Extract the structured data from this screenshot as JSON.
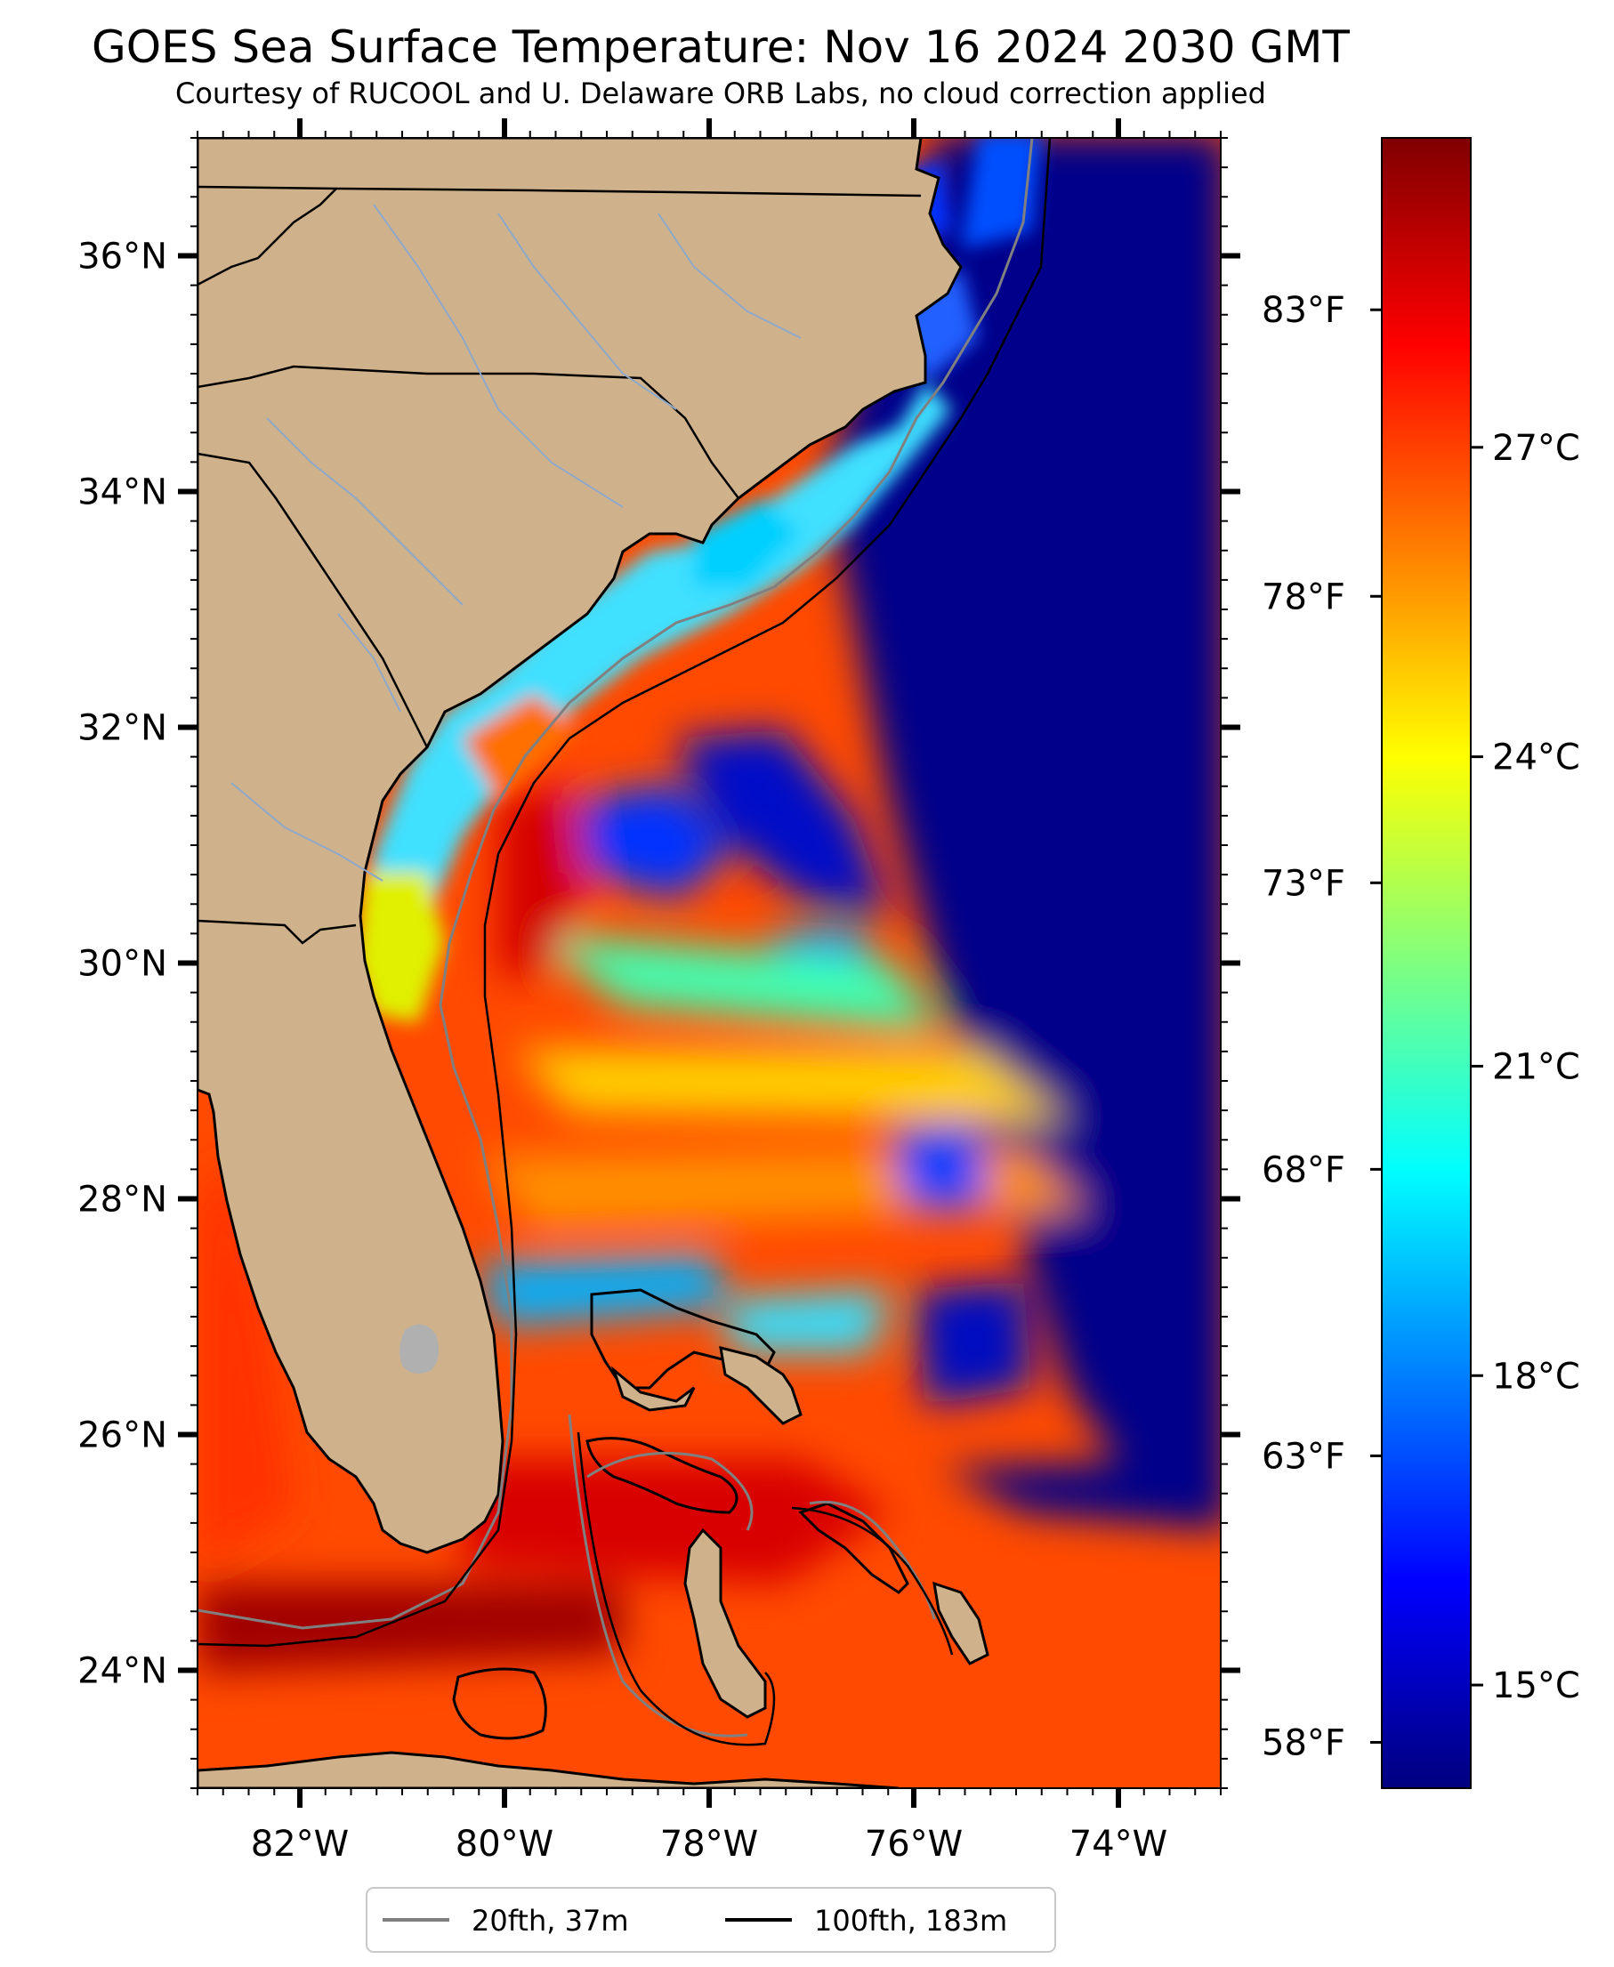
{
  "title": "GOES Sea Surface Temperature: Nov 16 2024 2030 GMT",
  "subtitle": "Courtesy of RUCOOL and U. Delaware ORB Labs, no cloud correction applied",
  "map": {
    "extent": {
      "lon": [
        -83.0,
        -73.0
      ],
      "lat": [
        23.0,
        37.0
      ]
    },
    "land_color": "#cfb28c",
    "lat_ticks": [
      {
        "value": 24,
        "label": "24°N"
      },
      {
        "value": 26,
        "label": "26°N"
      },
      {
        "value": 28,
        "label": "28°N"
      },
      {
        "value": 30,
        "label": "30°N"
      },
      {
        "value": 32,
        "label": "32°N"
      },
      {
        "value": 34,
        "label": "34°N"
      },
      {
        "value": 36,
        "label": "36°N"
      }
    ],
    "lon_ticks": [
      {
        "value": -82,
        "label": "82°W"
      },
      {
        "value": -80,
        "label": "80°W"
      },
      {
        "value": -78,
        "label": "78°W"
      },
      {
        "value": -76,
        "label": "76°W"
      },
      {
        "value": -74,
        "label": "74°W"
      }
    ],
    "isobaths": [
      {
        "label": "20fth, 37m",
        "color": "#808080"
      },
      {
        "label": "100fth, 183m",
        "color": "#000000"
      }
    ]
  },
  "colorbar": {
    "range_c": [
      14.0,
      30.0
    ],
    "celsius_ticks": [
      {
        "value": 15,
        "label": "15°C"
      },
      {
        "value": 18,
        "label": "18°C"
      },
      {
        "value": 21,
        "label": "21°C"
      },
      {
        "value": 24,
        "label": "24°C"
      },
      {
        "value": 27,
        "label": "27°C"
      }
    ],
    "fahrenheit_ticks": [
      {
        "value": 58,
        "label": "58°F"
      },
      {
        "value": 63,
        "label": "63°F"
      },
      {
        "value": 68,
        "label": "68°F"
      },
      {
        "value": 73,
        "label": "73°F"
      },
      {
        "value": 78,
        "label": "78°F"
      },
      {
        "value": 83,
        "label": "83°F"
      }
    ],
    "colormap": [
      "#00007f",
      "#0000ff",
      "#007fff",
      "#00ffff",
      "#7fff7f",
      "#ffff00",
      "#ff7f00",
      "#ff0000",
      "#7f0000"
    ]
  }
}
